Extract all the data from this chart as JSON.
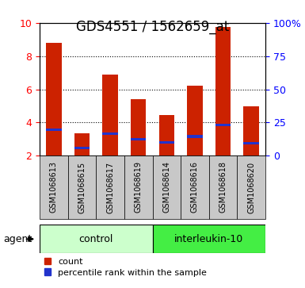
{
  "title": "GDS4551 / 1562659_at",
  "samples": [
    "GSM1068613",
    "GSM1068615",
    "GSM1068617",
    "GSM1068619",
    "GSM1068614",
    "GSM1068616",
    "GSM1068618",
    "GSM1068620"
  ],
  "count_values": [
    8.8,
    3.35,
    6.9,
    5.4,
    4.45,
    6.2,
    9.75,
    4.95
  ],
  "percentile_values": [
    3.55,
    2.45,
    3.3,
    3.0,
    2.8,
    3.15,
    3.85,
    2.75
  ],
  "ymin": 2.0,
  "ymax": 10.0,
  "yticks_left": [
    2,
    4,
    6,
    8,
    10
  ],
  "right_tick_positions": [
    2,
    4,
    6,
    8,
    10
  ],
  "right_tick_labels": [
    "0",
    "25",
    "50",
    "75",
    "100%"
  ],
  "bar_width": 0.55,
  "bar_color_red": "#cc2200",
  "bar_color_blue": "#2233cc",
  "blue_bar_height": 0.15,
  "groups": [
    {
      "label": "control",
      "start": 0,
      "end": 3,
      "color": "#ccffcc"
    },
    {
      "label": "interleukin-10",
      "start": 4,
      "end": 7,
      "color": "#44ee44"
    }
  ],
  "agent_label": "agent",
  "legend_count": "count",
  "legend_percentile": "percentile rank within the sample",
  "grid_color": "#000000",
  "plot_bg_color": "#ffffff",
  "sample_box_color": "#c8c8c8",
  "title_fontsize": 12,
  "axis_tick_fontsize": 9,
  "sample_fontsize": 7,
  "group_fontsize": 9,
  "legend_fontsize": 8
}
